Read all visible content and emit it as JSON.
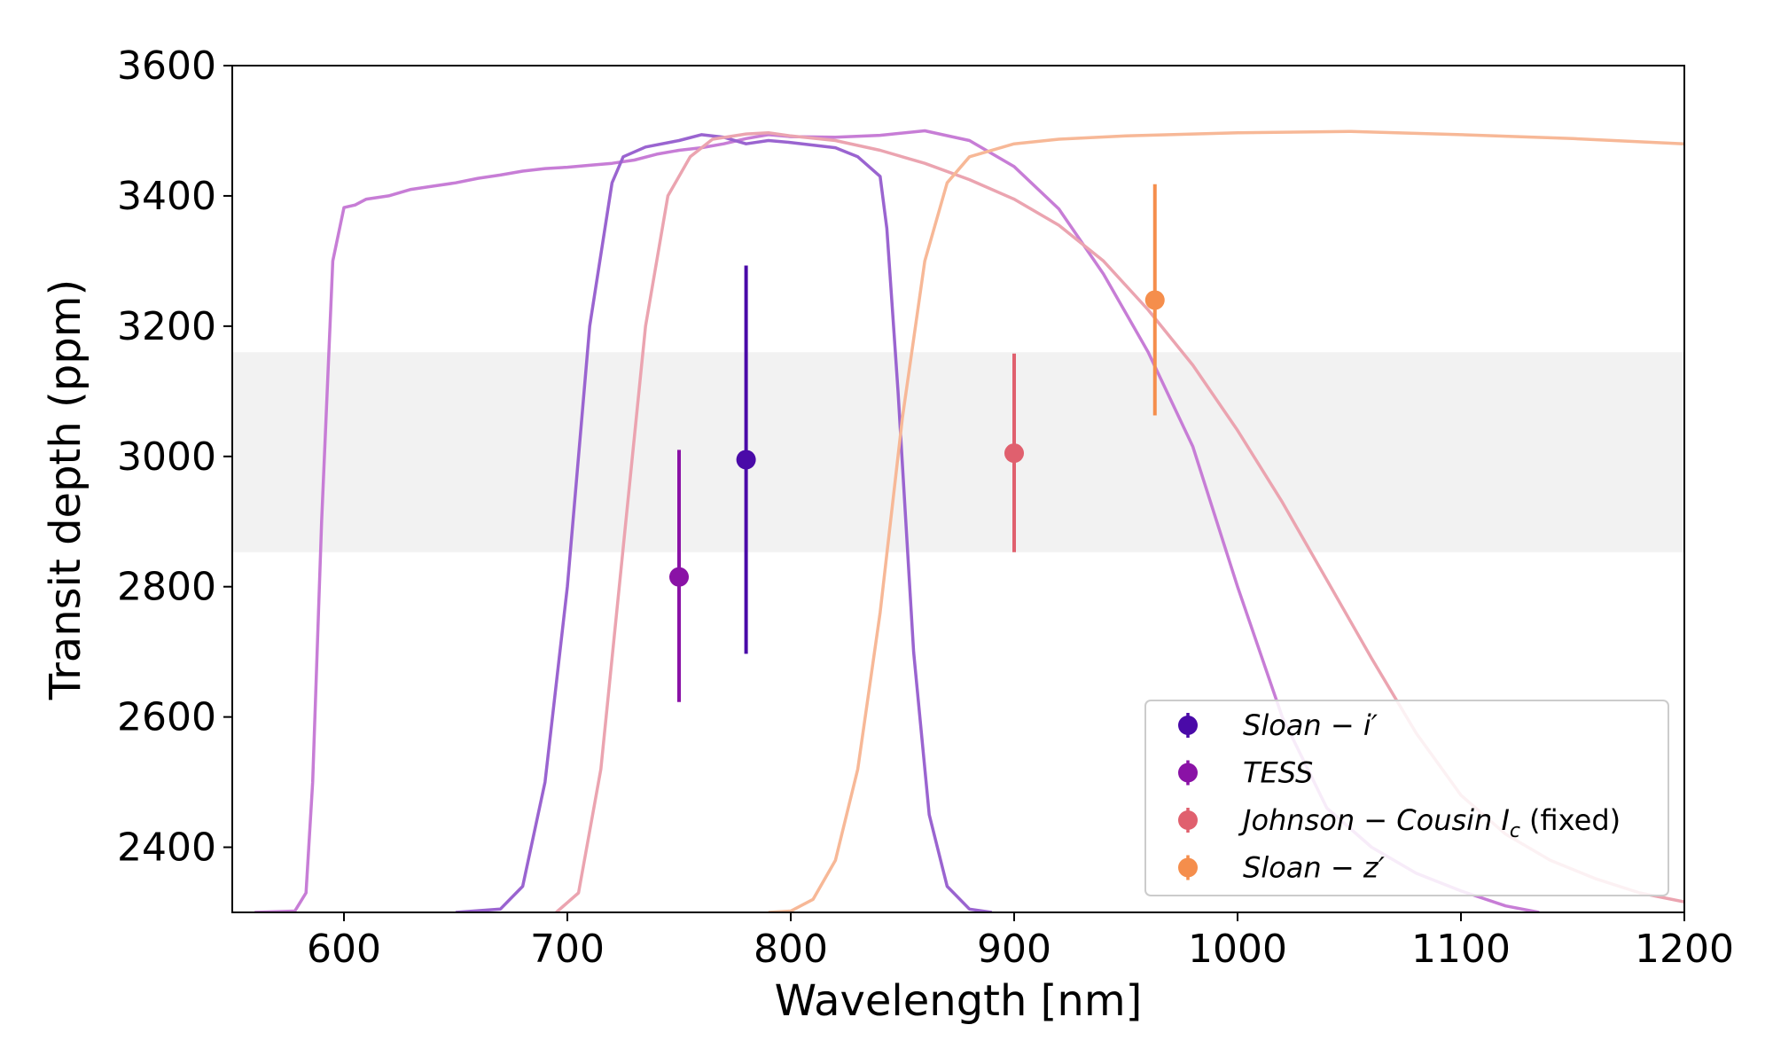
{
  "chart_data": {
    "type": "scatter",
    "xlabel": "Wavelength [nm]",
    "ylabel": "Transit depth (ppm)",
    "xlim": [
      550,
      1200
    ],
    "ylim": [
      2300,
      3600
    ],
    "xticks": [
      600,
      700,
      800,
      900,
      1000,
      1100,
      1200
    ],
    "yticks": [
      2400,
      2600,
      2800,
      3000,
      3200,
      3400,
      3600
    ],
    "band": {
      "ymin": 2853,
      "ymax": 3160,
      "color": "#f2f2f2"
    },
    "series": [
      {
        "name": "Sloan-i'",
        "legend_main": "Sloan − i′",
        "legend_suffix": "",
        "x": 780,
        "y": 2995,
        "err_low": 2697,
        "err_high": 3293,
        "color": "#4a0aa8"
      },
      {
        "name": "TESS",
        "legend_main": "TESS",
        "legend_suffix": "",
        "x": 750,
        "y": 2815,
        "err_low": 2623,
        "err_high": 3010,
        "color": "#8a12a6"
      },
      {
        "name": "Johnson-Cousin Ic (fixed)",
        "legend_main": "Johnson − Cousin I",
        "legend_sub": "c",
        "legend_suffix": "(fixed)",
        "x": 900,
        "y": 3005,
        "err_low": 2853,
        "err_high": 3158,
        "color": "#e0606e"
      },
      {
        "name": "Sloan-z'",
        "legend_main": "Sloan − z′",
        "legend_suffix": "",
        "x": 963,
        "y": 3240,
        "err_low": 3063,
        "err_high": 3418,
        "color": "#f58e4c"
      }
    ],
    "filter_curves": [
      {
        "name": "TESS bandpass",
        "color": "#c77dd6",
        "points": [
          [
            560,
            2300
          ],
          [
            578,
            2302
          ],
          [
            583,
            2330
          ],
          [
            586,
            2500
          ],
          [
            590,
            2900
          ],
          [
            595,
            3300
          ],
          [
            600,
            3382
          ],
          [
            605,
            3386
          ],
          [
            610,
            3395
          ],
          [
            620,
            3400
          ],
          [
            630,
            3410
          ],
          [
            640,
            3415
          ],
          [
            650,
            3420
          ],
          [
            660,
            3427
          ],
          [
            670,
            3432
          ],
          [
            680,
            3438
          ],
          [
            690,
            3442
          ],
          [
            700,
            3444
          ],
          [
            710,
            3447
          ],
          [
            720,
            3450
          ],
          [
            730,
            3455
          ],
          [
            740,
            3464
          ],
          [
            750,
            3470
          ],
          [
            760,
            3474
          ],
          [
            770,
            3480
          ],
          [
            780,
            3488
          ],
          [
            790,
            3494
          ],
          [
            800,
            3491
          ],
          [
            820,
            3490
          ],
          [
            840,
            3493
          ],
          [
            860,
            3500
          ],
          [
            880,
            3485
          ],
          [
            900,
            3445
          ],
          [
            920,
            3380
          ],
          [
            940,
            3280
          ],
          [
            960,
            3160
          ],
          [
            980,
            3015
          ],
          [
            1000,
            2800
          ],
          [
            1020,
            2600
          ],
          [
            1040,
            2460
          ],
          [
            1060,
            2400
          ],
          [
            1080,
            2360
          ],
          [
            1100,
            2333
          ],
          [
            1120,
            2310
          ],
          [
            1135,
            2300
          ]
        ]
      },
      {
        "name": "Sloan-i' bandpass",
        "color": "#9a64d0",
        "points": [
          [
            650,
            2300
          ],
          [
            670,
            2305
          ],
          [
            680,
            2340
          ],
          [
            690,
            2500
          ],
          [
            700,
            2800
          ],
          [
            710,
            3200
          ],
          [
            720,
            3420
          ],
          [
            725,
            3460
          ],
          [
            735,
            3475
          ],
          [
            750,
            3485
          ],
          [
            760,
            3494
          ],
          [
            770,
            3490
          ],
          [
            780,
            3480
          ],
          [
            790,
            3485
          ],
          [
            800,
            3482
          ],
          [
            820,
            3474
          ],
          [
            830,
            3460
          ],
          [
            840,
            3430
          ],
          [
            843,
            3350
          ],
          [
            848,
            3100
          ],
          [
            855,
            2700
          ],
          [
            862,
            2450
          ],
          [
            870,
            2340
          ],
          [
            880,
            2305
          ],
          [
            890,
            2300
          ]
        ]
      },
      {
        "name": "Johnson-Cousin Ic bandpass",
        "color": "#eba4b0",
        "points": [
          [
            695,
            2300
          ],
          [
            705,
            2330
          ],
          [
            715,
            2520
          ],
          [
            725,
            2860
          ],
          [
            735,
            3200
          ],
          [
            745,
            3400
          ],
          [
            755,
            3460
          ],
          [
            765,
            3487
          ],
          [
            780,
            3495
          ],
          [
            790,
            3497
          ],
          [
            800,
            3492
          ],
          [
            820,
            3485
          ],
          [
            840,
            3470
          ],
          [
            860,
            3450
          ],
          [
            880,
            3425
          ],
          [
            900,
            3395
          ],
          [
            920,
            3355
          ],
          [
            940,
            3300
          ],
          [
            960,
            3225
          ],
          [
            980,
            3140
          ],
          [
            1000,
            3040
          ],
          [
            1020,
            2930
          ],
          [
            1040,
            2810
          ],
          [
            1060,
            2690
          ],
          [
            1080,
            2575
          ],
          [
            1100,
            2480
          ],
          [
            1120,
            2420
          ],
          [
            1140,
            2380
          ],
          [
            1160,
            2352
          ],
          [
            1180,
            2330
          ],
          [
            1200,
            2316
          ]
        ]
      },
      {
        "name": "Sloan-z' bandpass",
        "color": "#f7b897",
        "points": [
          [
            790,
            2300
          ],
          [
            800,
            2302
          ],
          [
            810,
            2320
          ],
          [
            820,
            2380
          ],
          [
            830,
            2520
          ],
          [
            840,
            2760
          ],
          [
            850,
            3060
          ],
          [
            860,
            3300
          ],
          [
            870,
            3420
          ],
          [
            880,
            3460
          ],
          [
            900,
            3480
          ],
          [
            920,
            3487
          ],
          [
            950,
            3492
          ],
          [
            1000,
            3497
          ],
          [
            1050,
            3499
          ],
          [
            1100,
            3494
          ],
          [
            1150,
            3488
          ],
          [
            1200,
            3480
          ]
        ]
      }
    ]
  }
}
